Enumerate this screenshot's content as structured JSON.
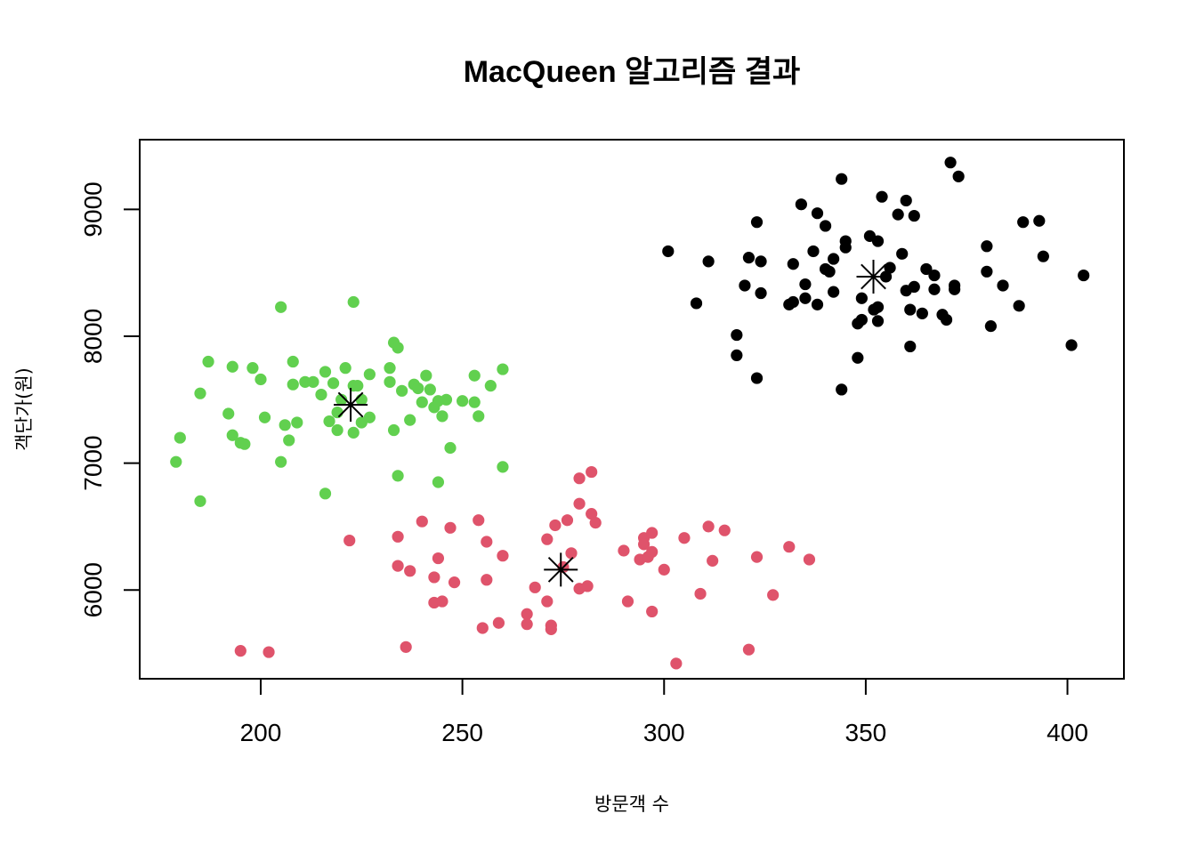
{
  "chart_data": {
    "type": "scatter",
    "title": "MacQueen 알고리즘 결과",
    "xlabel": "방문객 수",
    "ylabel": "객단가(원)",
    "xlim": [
      170,
      414
    ],
    "ylim": [
      5300,
      9550
    ],
    "xticks": [
      "200",
      "250",
      "300",
      "350",
      "400"
    ],
    "yticks": [
      "6000",
      "7000",
      "8000",
      "9000"
    ],
    "grid": false,
    "colors": {
      "cluster1": "#000000",
      "cluster2": "#DF536B",
      "cluster3": "#61D04F",
      "center": "#000000"
    },
    "series": [
      {
        "color": "#000000",
        "points": [
          [
            301,
            8670
          ],
          [
            308,
            8260
          ],
          [
            311,
            8590
          ],
          [
            318,
            8010
          ],
          [
            318,
            7850
          ],
          [
            320,
            8400
          ],
          [
            321,
            8620
          ],
          [
            323,
            8900
          ],
          [
            323,
            7670
          ],
          [
            324,
            8590
          ],
          [
            324,
            8340
          ],
          [
            331,
            8250
          ],
          [
            332,
            8270
          ],
          [
            332,
            8570
          ],
          [
            334,
            9040
          ],
          [
            335,
            8410
          ],
          [
            335,
            8300
          ],
          [
            337,
            8670
          ],
          [
            338,
            8250
          ],
          [
            338,
            8970
          ],
          [
            340,
            8530
          ],
          [
            340,
            8870
          ],
          [
            341,
            8510
          ],
          [
            342,
            8610
          ],
          [
            342,
            8350
          ],
          [
            344,
            9240
          ],
          [
            344,
            7580
          ],
          [
            345,
            8700
          ],
          [
            345,
            8750
          ],
          [
            348,
            8100
          ],
          [
            348,
            7830
          ],
          [
            349,
            8300
          ],
          [
            349,
            8130
          ],
          [
            351,
            8790
          ],
          [
            352,
            8210
          ],
          [
            353,
            8750
          ],
          [
            353,
            8120
          ],
          [
            353,
            8230
          ],
          [
            354,
            9100
          ],
          [
            355,
            8470
          ],
          [
            356,
            8540
          ],
          [
            358,
            8960
          ],
          [
            359,
            8650
          ],
          [
            360,
            9070
          ],
          [
            360,
            8360
          ],
          [
            361,
            8210
          ],
          [
            361,
            7920
          ],
          [
            362,
            8390
          ],
          [
            362,
            8950
          ],
          [
            364,
            8180
          ],
          [
            365,
            8530
          ],
          [
            367,
            8480
          ],
          [
            367,
            8370
          ],
          [
            369,
            8170
          ],
          [
            370,
            8130
          ],
          [
            371,
            9370
          ],
          [
            372,
            8370
          ],
          [
            372,
            8400
          ],
          [
            373,
            9260
          ],
          [
            380,
            8710
          ],
          [
            380,
            8510
          ],
          [
            381,
            8080
          ],
          [
            384,
            8400
          ],
          [
            388,
            8240
          ],
          [
            389,
            8900
          ],
          [
            393,
            8910
          ],
          [
            394,
            8630
          ],
          [
            401,
            7930
          ],
          [
            404,
            8480
          ]
        ]
      },
      {
        "color": "#DF536B",
        "points": [
          [
            195,
            5520
          ],
          [
            202,
            5510
          ],
          [
            222,
            6390
          ],
          [
            234,
            6420
          ],
          [
            234,
            6190
          ],
          [
            236,
            5550
          ],
          [
            237,
            6150
          ],
          [
            240,
            6540
          ],
          [
            243,
            6100
          ],
          [
            243,
            5900
          ],
          [
            244,
            6250
          ],
          [
            245,
            5910
          ],
          [
            247,
            6490
          ],
          [
            248,
            6060
          ],
          [
            254,
            6550
          ],
          [
            255,
            5700
          ],
          [
            256,
            6080
          ],
          [
            256,
            6380
          ],
          [
            259,
            5740
          ],
          [
            260,
            6270
          ],
          [
            266,
            5810
          ],
          [
            266,
            5730
          ],
          [
            268,
            6020
          ],
          [
            271,
            5910
          ],
          [
            271,
            6400
          ],
          [
            272,
            5720
          ],
          [
            272,
            5690
          ],
          [
            273,
            6510
          ],
          [
            275,
            6180
          ],
          [
            276,
            6550
          ],
          [
            277,
            6290
          ],
          [
            279,
            6880
          ],
          [
            279,
            6680
          ],
          [
            279,
            6010
          ],
          [
            281,
            6030
          ],
          [
            282,
            6600
          ],
          [
            282,
            6930
          ],
          [
            283,
            6530
          ],
          [
            290,
            6310
          ],
          [
            291,
            5910
          ],
          [
            294,
            6240
          ],
          [
            295,
            6410
          ],
          [
            295,
            6360
          ],
          [
            296,
            6260
          ],
          [
            297,
            6300
          ],
          [
            297,
            6450
          ],
          [
            297,
            5830
          ],
          [
            300,
            6160
          ],
          [
            303,
            5420
          ],
          [
            305,
            6410
          ],
          [
            309,
            5970
          ],
          [
            311,
            6500
          ],
          [
            312,
            6230
          ],
          [
            315,
            6470
          ],
          [
            321,
            5530
          ],
          [
            323,
            6260
          ],
          [
            327,
            5960
          ],
          [
            331,
            6340
          ],
          [
            336,
            6240
          ]
        ]
      },
      {
        "color": "#61D04F",
        "points": [
          [
            179,
            7010
          ],
          [
            180,
            7200
          ],
          [
            185,
            6700
          ],
          [
            185,
            7550
          ],
          [
            187,
            7800
          ],
          [
            192,
            7390
          ],
          [
            193,
            7220
          ],
          [
            193,
            7760
          ],
          [
            195,
            7160
          ],
          [
            196,
            7150
          ],
          [
            198,
            7750
          ],
          [
            200,
            7660
          ],
          [
            201,
            7360
          ],
          [
            205,
            7010
          ],
          [
            205,
            8230
          ],
          [
            206,
            7300
          ],
          [
            207,
            7180
          ],
          [
            208,
            7620
          ],
          [
            208,
            7800
          ],
          [
            209,
            7320
          ],
          [
            211,
            7640
          ],
          [
            213,
            7640
          ],
          [
            215,
            7540
          ],
          [
            216,
            6760
          ],
          [
            216,
            7720
          ],
          [
            217,
            7330
          ],
          [
            218,
            7630
          ],
          [
            219,
            7260
          ],
          [
            219,
            7400
          ],
          [
            220,
            7500
          ],
          [
            221,
            7750
          ],
          [
            223,
            7240
          ],
          [
            223,
            8270
          ],
          [
            223,
            7610
          ],
          [
            224,
            7610
          ],
          [
            225,
            7320
          ],
          [
            225,
            7500
          ],
          [
            227,
            7700
          ],
          [
            227,
            7360
          ],
          [
            232,
            7750
          ],
          [
            232,
            7640
          ],
          [
            233,
            7260
          ],
          [
            233,
            7950
          ],
          [
            234,
            7910
          ],
          [
            234,
            6900
          ],
          [
            235,
            7570
          ],
          [
            237,
            7340
          ],
          [
            238,
            7620
          ],
          [
            239,
            7590
          ],
          [
            241,
            7690
          ],
          [
            240,
            7480
          ],
          [
            242,
            7580
          ],
          [
            243,
            7440
          ],
          [
            244,
            6850
          ],
          [
            244,
            7490
          ],
          [
            245,
            7370
          ],
          [
            246,
            7500
          ],
          [
            247,
            7120
          ],
          [
            250,
            7490
          ],
          [
            253,
            7480
          ],
          [
            253,
            7690
          ],
          [
            254,
            7370
          ],
          [
            257,
            7610
          ],
          [
            260,
            7740
          ],
          [
            260,
            6970
          ]
        ]
      }
    ],
    "centers": [
      [
        351.9,
        8470
      ],
      [
        274.4,
        6160
      ],
      [
        222.3,
        7460
      ]
    ]
  }
}
